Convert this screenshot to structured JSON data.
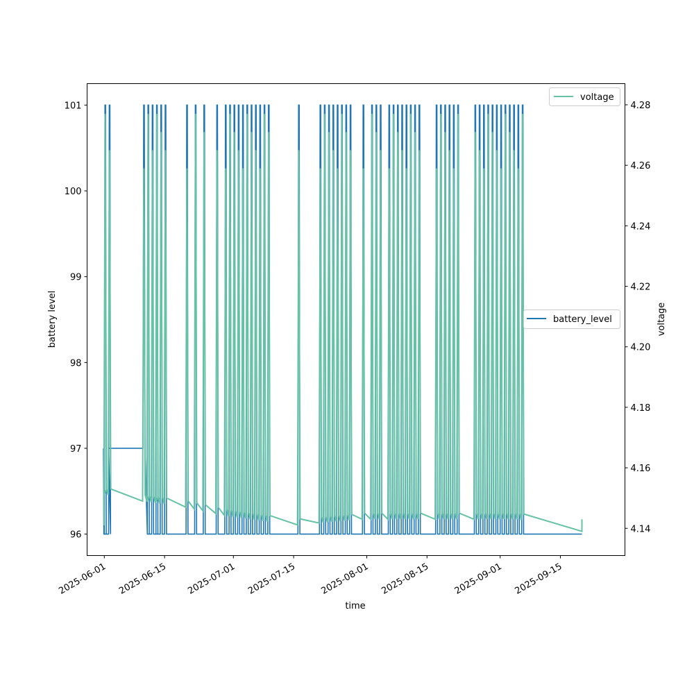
{
  "chart_data": {
    "type": "line",
    "title": "",
    "xlabel": "time",
    "ylabel": "battery level",
    "y2label": "voltage",
    "x_type": "date",
    "xlim": [
      "2025-05-28",
      "2025-09-30"
    ],
    "xticks": [
      "2025-06-01",
      "2025-06-15",
      "2025-07-01",
      "2025-07-15",
      "2025-08-01",
      "2025-08-15",
      "2025-09-01",
      "2025-09-15"
    ],
    "ylim": [
      95.75,
      101.25
    ],
    "yticks": [
      96,
      97,
      98,
      99,
      100,
      101
    ],
    "y2lim": [
      4.131,
      4.287
    ],
    "y2ticks": [
      "4.14",
      "4.16",
      "4.18",
      "4.20",
      "4.22",
      "4.24",
      "4.26",
      "4.28"
    ],
    "grid": false,
    "charge_sessions": [
      "2025-06-01",
      "2025-06-01",
      "2025-06-02",
      "2025-06-10",
      "2025-06-11",
      "2025-06-11",
      "2025-06-12",
      "2025-06-13",
      "2025-06-13",
      "2025-06-14",
      "2025-06-15",
      "2025-06-20",
      "2025-06-22",
      "2025-06-24",
      "2025-06-27",
      "2025-06-29",
      "2025-06-30",
      "2025-07-01",
      "2025-07-02",
      "2025-07-03",
      "2025-07-04",
      "2025-07-05",
      "2025-07-06",
      "2025-07-07",
      "2025-07-08",
      "2025-07-09",
      "2025-07-16",
      "2025-07-21",
      "2025-07-22",
      "2025-07-23",
      "2025-07-24",
      "2025-07-25",
      "2025-07-26",
      "2025-07-27",
      "2025-07-28",
      "2025-07-31",
      "2025-08-02",
      "2025-08-03",
      "2025-08-04",
      "2025-08-06",
      "2025-08-07",
      "2025-08-08",
      "2025-08-09",
      "2025-08-10",
      "2025-08-11",
      "2025-08-12",
      "2025-08-13",
      "2025-08-17",
      "2025-08-18",
      "2025-08-19",
      "2025-08-20",
      "2025-08-21",
      "2025-08-22",
      "2025-08-26",
      "2025-08-27",
      "2025-08-28",
      "2025-08-29",
      "2025-08-30",
      "2025-08-31",
      "2025-09-01",
      "2025-09-02",
      "2025-09-03",
      "2025-09-04",
      "2025-09-05",
      "2025-09-06"
    ],
    "series": [
      {
        "name": "battery_level",
        "axis": "left",
        "color": "#1f77b4",
        "legend_position": "center-right",
        "high_value": 101,
        "low_value": 96,
        "plateau": {
          "x": [
            "2025-06-02",
            "2025-06-10"
          ],
          "value": 97
        },
        "end": {
          "x": "2025-09-20",
          "value": 96
        }
      },
      {
        "name": "voltage",
        "axis": "right",
        "color": "#66c2a5",
        "legend_position": "upper-right",
        "high_value": 4.277,
        "low_value": 4.141,
        "baseline_points": [
          {
            "x": "2025-06-02",
            "y": 4.151
          },
          {
            "x": "2025-06-10",
            "y": 4.149
          },
          {
            "x": "2025-06-20",
            "y": 4.147
          },
          {
            "x": "2025-06-30",
            "y": 4.144
          },
          {
            "x": "2025-07-15",
            "y": 4.141
          },
          {
            "x": "2025-07-31",
            "y": 4.143
          },
          {
            "x": "2025-08-15",
            "y": 4.143
          },
          {
            "x": "2025-09-05",
            "y": 4.143
          },
          {
            "x": "2025-09-20",
            "y": 4.139
          },
          {
            "x": "2025-09-20",
            "y": 4.143
          }
        ]
      }
    ]
  }
}
